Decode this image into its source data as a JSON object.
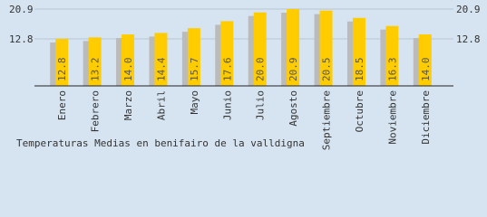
{
  "chart_data": {
    "type": "bar",
    "title": "Temperaturas Medias en benifairo de la valldigna",
    "categories": [
      "Enero",
      "Febrero",
      "Marzo",
      "Abril",
      "Mayo",
      "Junio",
      "Julio",
      "Agosto",
      "Septiembre",
      "Octubre",
      "Noviembre",
      "Diciembre"
    ],
    "values": [
      12.8,
      13.2,
      14.0,
      14.4,
      15.7,
      17.6,
      20.0,
      20.9,
      20.5,
      18.5,
      16.3,
      14.0
    ],
    "value_labels": [
      "12.8",
      "13.2",
      "14.0",
      "14.4",
      "15.7",
      "17.6",
      "20.0",
      "20.9",
      "20.5",
      "18.5",
      "16.3",
      "14.0"
    ],
    "color": "#ffcc00",
    "shadow_color": "#bbbbbb",
    "ylim": [
      0,
      20.9
    ],
    "yticks": [
      12.8,
      20.9
    ],
    "grid": true
  }
}
